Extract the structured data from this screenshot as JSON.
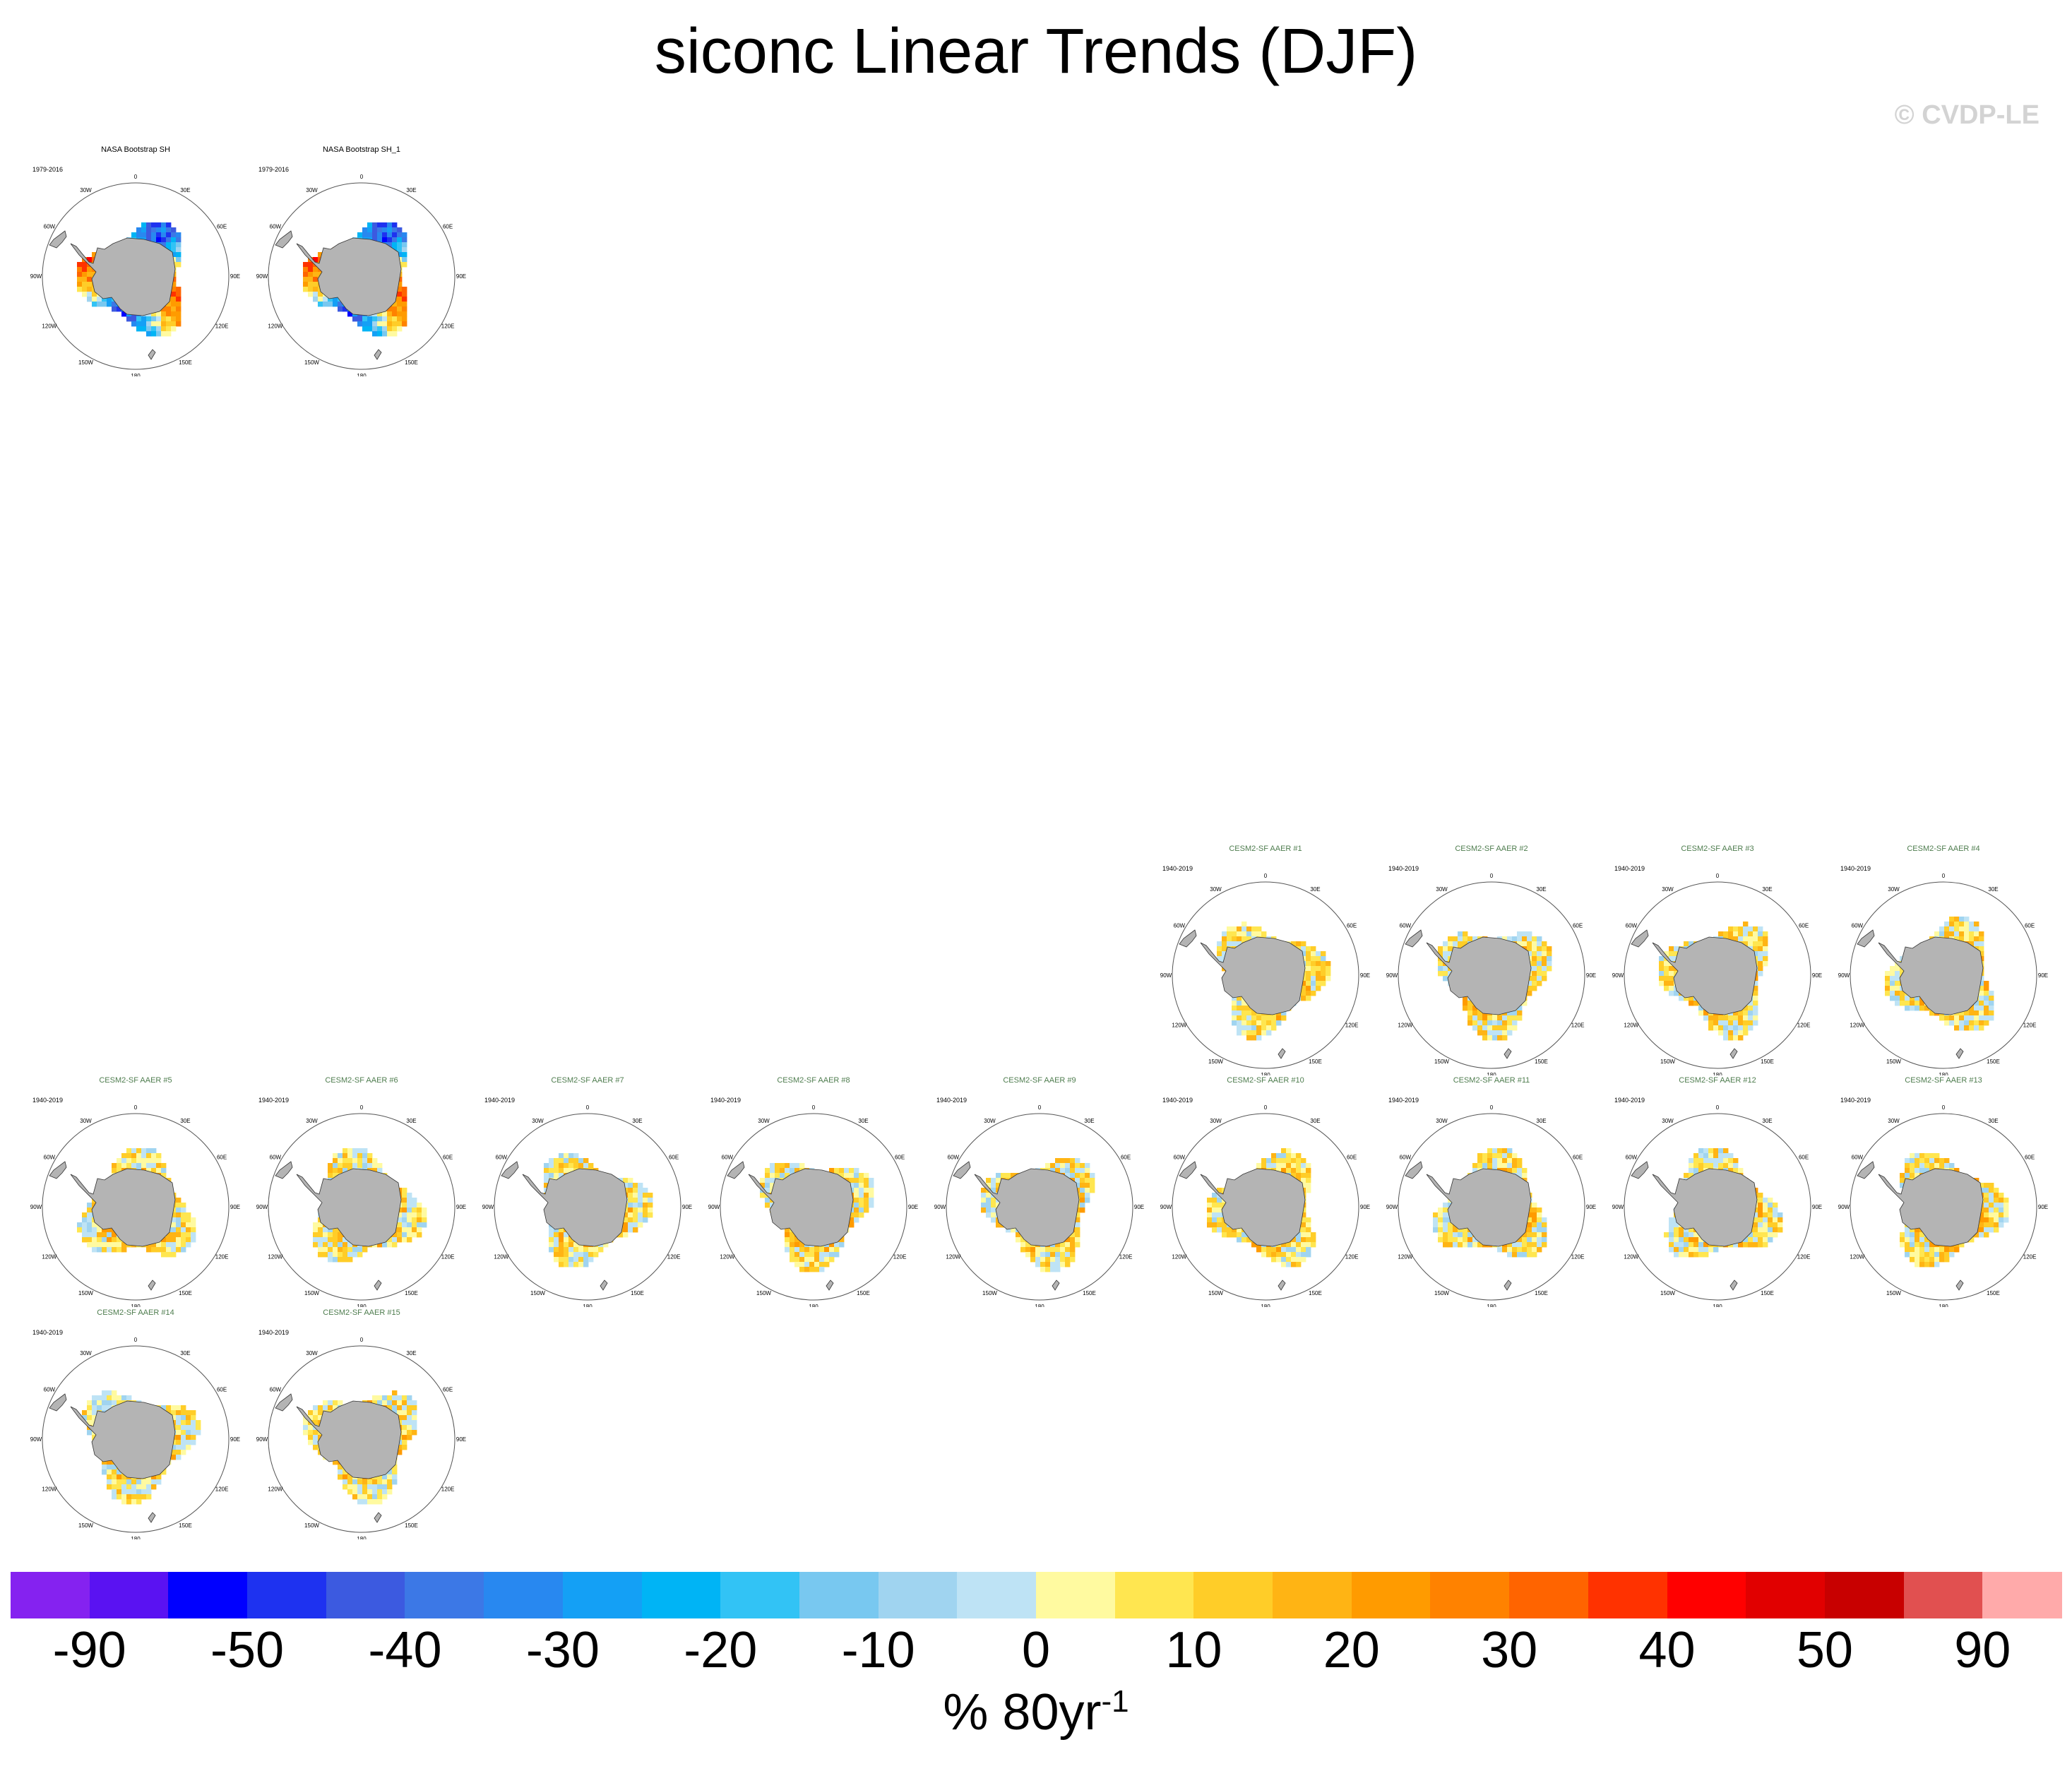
{
  "title": "siconc Linear Trends (DJF)",
  "watermark": "© CVDP-LE",
  "units": {
    "base": "% 80yr",
    "exponent": "-1"
  },
  "colors": {
    "land": "#b4b4b4",
    "obs_title": "#000000",
    "model_title": "#4f7d4f"
  },
  "chart_data": {
    "type": "heatmap",
    "variable": "siconc",
    "season": "DJF",
    "projection": "south polar stereographic",
    "map_labels": {
      "top": "0",
      "lon_30w": "30W",
      "lon_30e": "30E",
      "lon_60w": "60W",
      "lon_60e": "60E",
      "lon_90w": "90W",
      "lon_90e": "90E",
      "lon_120w": "120W",
      "lon_120e": "120E",
      "lon_150w": "150W",
      "lon_150e": "150E",
      "lon_180": "180"
    },
    "panels": [
      {
        "title": "NASA Bootstrap SH",
        "period": "1979-2016",
        "kind": "obs",
        "seed": 11
      },
      {
        "title": "NASA Bootstrap SH_1",
        "period": "1979-2016",
        "kind": "obs",
        "seed": 11
      },
      {
        "title": "CESM2-SF AAER #1",
        "period": "1940-2019",
        "kind": "model",
        "seed": 21
      },
      {
        "title": "CESM2-SF AAER #2",
        "period": "1940-2019",
        "kind": "model",
        "seed": 22
      },
      {
        "title": "CESM2-SF AAER #3",
        "period": "1940-2019",
        "kind": "model",
        "seed": 23
      },
      {
        "title": "CESM2-SF AAER #4",
        "period": "1940-2019",
        "kind": "model",
        "seed": 24
      },
      {
        "title": "CESM2-SF AAER #5",
        "period": "1940-2019",
        "kind": "model",
        "seed": 25
      },
      {
        "title": "CESM2-SF AAER #6",
        "period": "1940-2019",
        "kind": "model",
        "seed": 26
      },
      {
        "title": "CESM2-SF AAER #7",
        "period": "1940-2019",
        "kind": "model",
        "seed": 27
      },
      {
        "title": "CESM2-SF AAER #8",
        "period": "1940-2019",
        "kind": "model",
        "seed": 28
      },
      {
        "title": "CESM2-SF AAER #9",
        "period": "1940-2019",
        "kind": "model",
        "seed": 29
      },
      {
        "title": "CESM2-SF AAER #10",
        "period": "1940-2019",
        "kind": "model",
        "seed": 30
      },
      {
        "title": "CESM2-SF AAER #11",
        "period": "1940-2019",
        "kind": "model",
        "seed": 31
      },
      {
        "title": "CESM2-SF AAER #12",
        "period": "1940-2019",
        "kind": "model",
        "seed": 32
      },
      {
        "title": "CESM2-SF AAER #13",
        "period": "1940-2019",
        "kind": "model",
        "seed": 33
      },
      {
        "title": "CESM2-SF AAER #14",
        "period": "1940-2019",
        "kind": "model",
        "seed": 34
      },
      {
        "title": "CESM2-SF AAER #15",
        "period": "1940-2019",
        "kind": "model",
        "seed": 35
      }
    ],
    "colorbar": {
      "labels": [
        "-90",
        "-50",
        "-40",
        "-30",
        "-20",
        "-10",
        "0",
        "10",
        "20",
        "30",
        "40",
        "50",
        "90"
      ],
      "colors": [
        "#8522f0",
        "#5a12f2",
        "#0000ff",
        "#1e32f0",
        "#3c5ae0",
        "#3c78e6",
        "#2888f0",
        "#14a0f5",
        "#00b4f5",
        "#32c3f5",
        "#78c8f0",
        "#a0d4f0",
        "#bee3f5",
        "#fffaa0",
        "#ffe650",
        "#ffcd28",
        "#ffb414",
        "#ff9b00",
        "#ff8200",
        "#ff6400",
        "#ff3200",
        "#ff0000",
        "#e10000",
        "#c80000",
        "#e15050",
        "#ffaaaa"
      ]
    }
  }
}
